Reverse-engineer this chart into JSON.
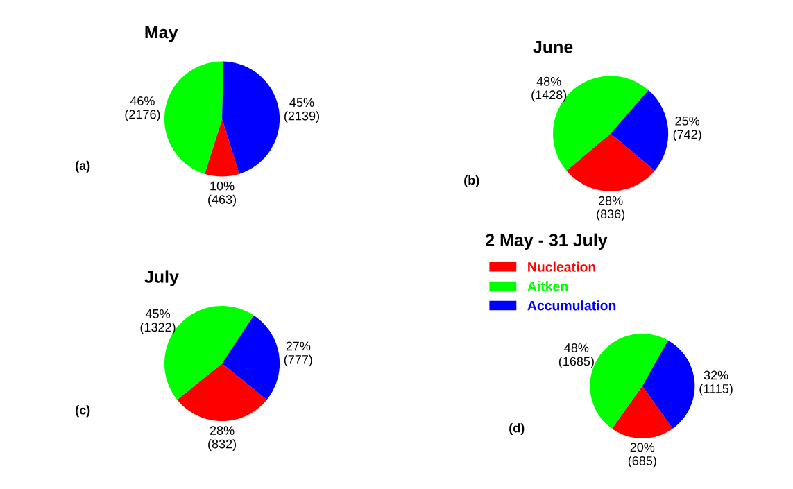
{
  "chart_data": [
    {
      "type": "pie",
      "title": "May",
      "categories": [
        null,
        null,
        null
      ],
      "values": [
        463,
        2176,
        2139
      ],
      "colors": [
        "#ff0000",
        "#00ff00",
        "#0000ff"
      ],
      "value_labels": [
        "10%\n(463)",
        "46%\n(2176)",
        "45%\n(2139)"
      ],
      "annotations": [
        "(a)"
      ],
      "legend": false
    },
    {
      "type": "pie",
      "title": "June",
      "categories": [
        null,
        null,
        null
      ],
      "values": [
        836,
        1428,
        742
      ],
      "colors": [
        "#ff0000",
        "#00ff00",
        "#0000ff"
      ],
      "value_labels": [
        "28%\n(836)",
        "48%\n(1428)",
        "25%\n(742)"
      ],
      "annotations": [
        "(b)"
      ],
      "legend": false
    },
    {
      "type": "pie",
      "title": "July",
      "categories": [
        null,
        null,
        null
      ],
      "values": [
        832,
        1322,
        777
      ],
      "colors": [
        "#ff0000",
        "#00ff00",
        "#0000ff"
      ],
      "value_labels": [
        "28%\n(832)",
        "45%\n(1322)",
        "27%\n(777)"
      ],
      "annotations": [
        "(c)"
      ],
      "legend": false
    },
    {
      "type": "pie",
      "title": "2 May - 31 July",
      "categories": [
        "Nucleation",
        "Aitken",
        "Accumulation"
      ],
      "values": [
        685,
        1685,
        1115
      ],
      "colors": [
        "#ff0000",
        "#00ff00",
        "#0000ff"
      ],
      "value_labels": [
        "20%\n(685)",
        "48%\n(1685)",
        "32%\n(1115)"
      ],
      "annotations": [
        "(d)"
      ],
      "legend": "top left"
    }
  ]
}
